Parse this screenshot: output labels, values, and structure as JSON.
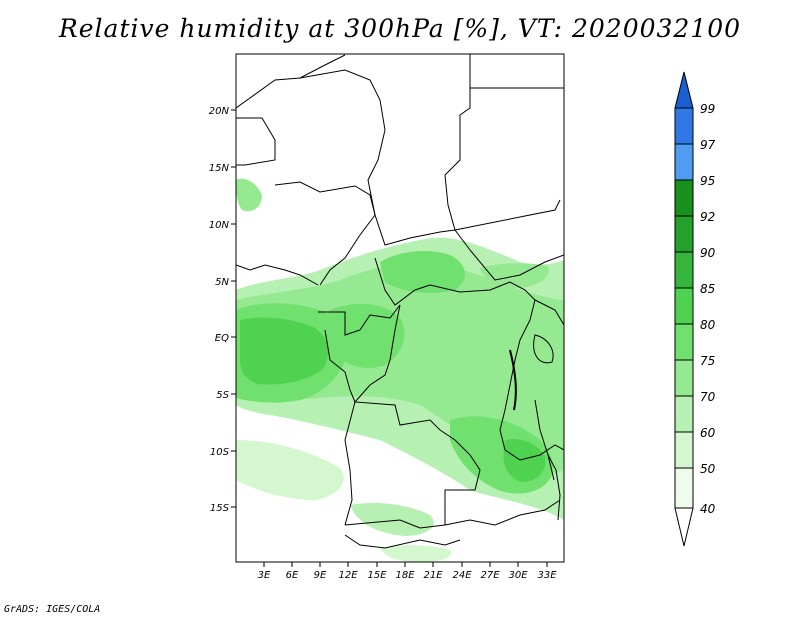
{
  "title": "Relative humidity at 300hPa [%], VT: 2020032100",
  "footer": "GrADS: IGES/COLA",
  "map": {
    "lat_ticks": [
      "20N",
      "15N",
      "10N",
      "5N",
      "EQ",
      "5S",
      "10S",
      "15S"
    ],
    "lon_ticks": [
      "3E",
      "6E",
      "9E",
      "12E",
      "15E",
      "18E",
      "21E",
      "24E",
      "27E",
      "30E",
      "33E"
    ]
  },
  "colorbar": {
    "levels": [
      "99",
      "97",
      "95",
      "92",
      "90",
      "85",
      "80",
      "75",
      "70",
      "60",
      "50",
      "40"
    ],
    "colors": [
      "#1a5fd0",
      "#2f78e6",
      "#4f9cf2",
      "#17901d",
      "#23a12a",
      "#35b53b",
      "#4fd24f",
      "#70e06e",
      "#95e991",
      "#b6f0b2",
      "#d4f7d0",
      "#effcec"
    ]
  }
}
